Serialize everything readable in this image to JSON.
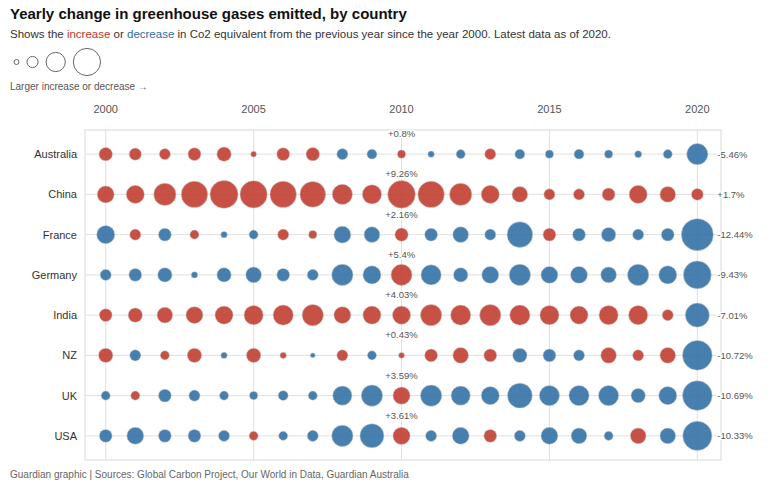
{
  "chart_data": {
    "type": "bubble",
    "title": "Yearly change in greenhouse gases emitted, by country",
    "subtitle": [
      {
        "text": "Shows the ",
        "color": "#333333"
      },
      {
        "text": "increase",
        "color": "#c0392b"
      },
      {
        "text": " or ",
        "color": "#333333"
      },
      {
        "text": "decrease",
        "color": "#2e6da4"
      },
      {
        "text": " in Co2 equivalent from the previous year since the year 2000. Latest data as of 2020.",
        "color": "#333333"
      }
    ],
    "footnote": "Guardian graphic | Sources: Global Carbon Project, Our World in Data, Guardian Australia",
    "x": [
      2000,
      2001,
      2002,
      2003,
      2004,
      2005,
      2006,
      2007,
      2008,
      2009,
      2010,
      2011,
      2012,
      2013,
      2014,
      2015,
      2016,
      2017,
      2018,
      2019,
      2020
    ],
    "xlim": [
      1999.3,
      2020.8
    ],
    "xticks": [
      2000,
      2005,
      2010,
      2015,
      2020
    ],
    "grid": true,
    "size_range": [
      0,
      12.44
    ],
    "size_legend": {
      "values": [
        0.3,
        1.5,
        4.5,
        9.0
      ],
      "label": "Larger increase or decrease →"
    },
    "series": [
      {
        "name": "Australia",
        "values": [
          2.2,
          1.8,
          1.5,
          2.0,
          2.5,
          0.4,
          2.0,
          2.2,
          -1.5,
          -1.2,
          0.8,
          -0.5,
          -1.0,
          1.5,
          -1.2,
          -0.8,
          -1.2,
          -0.8,
          -0.6,
          -1.0,
          -5.46
        ],
        "value_labels": [
          null,
          null,
          null,
          null,
          null,
          null,
          null,
          null,
          null,
          null,
          "+0.8%",
          null,
          null,
          null,
          null,
          null,
          null,
          null,
          null,
          null,
          "-5.46%"
        ],
        "colors": [
          "#c0392b",
          "#c0392b",
          "#c0392b",
          "#c0392b",
          "#c0392b",
          "#c0392b",
          "#c0392b",
          "#c0392b",
          "#2e6da4",
          "#2e6da4",
          "#c0392b",
          "#2e6da4",
          "#2e6da4",
          "#c0392b",
          "#2e6da4",
          "#2e6da4",
          "#2e6da4",
          "#2e6da4",
          "#2e6da4",
          "#2e6da4",
          "#2e6da4"
        ]
      },
      {
        "name": "China",
        "values": [
          3.5,
          4.0,
          6.0,
          8.5,
          9.5,
          9.0,
          8.5,
          8.0,
          5.0,
          4.5,
          9.26,
          8.5,
          6.0,
          4.0,
          3.0,
          1.5,
          1.5,
          2.0,
          4.0,
          3.0,
          1.7
        ],
        "value_labels": [
          null,
          null,
          null,
          null,
          null,
          null,
          null,
          null,
          null,
          null,
          "+9.26%",
          null,
          null,
          null,
          null,
          null,
          null,
          null,
          null,
          null,
          "+1.7%"
        ],
        "colors": [
          "#c0392b",
          "#c0392b",
          "#c0392b",
          "#c0392b",
          "#c0392b",
          "#c0392b",
          "#c0392b",
          "#c0392b",
          "#c0392b",
          "#c0392b",
          "#c0392b",
          "#c0392b",
          "#c0392b",
          "#c0392b",
          "#c0392b",
          "#c0392b",
          "#c0392b",
          "#c0392b",
          "#c0392b",
          "#c0392b",
          "#c0392b"
        ]
      },
      {
        "name": "France",
        "values": [
          -4.0,
          1.5,
          -2.0,
          1.0,
          -0.5,
          -1.0,
          1.5,
          0.8,
          -3.5,
          -3.0,
          2.16,
          -2.0,
          -3.0,
          -1.5,
          -8.0,
          2.0,
          -2.0,
          -2.5,
          -1.5,
          -2.0,
          -12.44
        ],
        "value_labels": [
          null,
          null,
          null,
          null,
          null,
          null,
          null,
          null,
          null,
          null,
          "+2.16%",
          null,
          null,
          null,
          null,
          null,
          null,
          null,
          null,
          null,
          "-12.44%"
        ],
        "colors": [
          "#2e6da4",
          "#c0392b",
          "#2e6da4",
          "#c0392b",
          "#2e6da4",
          "#2e6da4",
          "#c0392b",
          "#c0392b",
          "#2e6da4",
          "#2e6da4",
          "#c0392b",
          "#2e6da4",
          "#2e6da4",
          "#2e6da4",
          "#2e6da4",
          "#c0392b",
          "#2e6da4",
          "#2e6da4",
          "#2e6da4",
          "#2e6da4",
          "#2e6da4"
        ]
      },
      {
        "name": "Germany",
        "values": [
          -1.5,
          -2.0,
          -2.5,
          -0.5,
          -2.5,
          -3.0,
          -2.0,
          -1.5,
          -5.5,
          -4.0,
          5.4,
          -5.0,
          -2.5,
          -3.5,
          -5.5,
          -3.5,
          -3.5,
          -3.0,
          -5.5,
          -4.0,
          -9.43
        ],
        "value_labels": [
          null,
          null,
          null,
          null,
          null,
          null,
          null,
          null,
          null,
          null,
          "+5.4%",
          null,
          null,
          null,
          null,
          null,
          null,
          null,
          null,
          null,
          "-9.43%"
        ],
        "colors": [
          "#2e6da4",
          "#2e6da4",
          "#2e6da4",
          "#2e6da4",
          "#2e6da4",
          "#2e6da4",
          "#2e6da4",
          "#2e6da4",
          "#2e6da4",
          "#2e6da4",
          "#c0392b",
          "#2e6da4",
          "#2e6da4",
          "#2e6da4",
          "#2e6da4",
          "#2e6da4",
          "#2e6da4",
          "#2e6da4",
          "#2e6da4",
          "#2e6da4",
          "#2e6da4"
        ]
      },
      {
        "name": "India",
        "values": [
          2.0,
          2.5,
          3.0,
          3.5,
          4.0,
          4.5,
          5.0,
          5.5,
          3.5,
          4.0,
          4.03,
          5.5,
          5.0,
          5.5,
          5.0,
          4.5,
          4.0,
          4.5,
          4.5,
          1.5,
          -7.01
        ],
        "value_labels": [
          null,
          null,
          null,
          null,
          null,
          null,
          null,
          null,
          null,
          null,
          "+4.03%",
          null,
          null,
          null,
          null,
          null,
          null,
          null,
          null,
          null,
          "-7.01%"
        ],
        "colors": [
          "#c0392b",
          "#c0392b",
          "#c0392b",
          "#c0392b",
          "#c0392b",
          "#c0392b",
          "#c0392b",
          "#c0392b",
          "#c0392b",
          "#c0392b",
          "#c0392b",
          "#c0392b",
          "#c0392b",
          "#c0392b",
          "#c0392b",
          "#c0392b",
          "#c0392b",
          "#c0392b",
          "#c0392b",
          "#c0392b",
          "#2e6da4"
        ]
      },
      {
        "name": "NZ",
        "values": [
          2.5,
          -1.5,
          1.0,
          2.5,
          -0.5,
          2.5,
          0.5,
          -0.3,
          1.5,
          -1.0,
          0.43,
          2.0,
          3.0,
          2.0,
          -2.5,
          -2.0,
          -1.5,
          3.0,
          1.5,
          3.0,
          -10.72
        ],
        "value_labels": [
          null,
          null,
          null,
          null,
          null,
          null,
          null,
          null,
          null,
          null,
          "+0.43%",
          null,
          null,
          null,
          null,
          null,
          null,
          null,
          null,
          null,
          "-10.72%"
        ],
        "colors": [
          "#c0392b",
          "#2e6da4",
          "#c0392b",
          "#c0392b",
          "#2e6da4",
          "#c0392b",
          "#c0392b",
          "#2e6da4",
          "#c0392b",
          "#2e6da4",
          "#c0392b",
          "#c0392b",
          "#c0392b",
          "#c0392b",
          "#2e6da4",
          "#2e6da4",
          "#2e6da4",
          "#c0392b",
          "#c0392b",
          "#c0392b",
          "#2e6da4"
        ]
      },
      {
        "name": "UK",
        "values": [
          -1.0,
          1.0,
          -2.0,
          -1.5,
          -1.0,
          -0.8,
          -1.2,
          -1.0,
          -4.5,
          -5.5,
          3.59,
          -5.5,
          -4.5,
          -4.0,
          -7.5,
          -5.0,
          -5.0,
          -5.0,
          -2.5,
          -4.0,
          -10.69
        ],
        "value_labels": [
          null,
          null,
          null,
          null,
          null,
          null,
          null,
          null,
          null,
          null,
          "+3.59%",
          null,
          null,
          null,
          null,
          null,
          null,
          null,
          null,
          null,
          "-10.69%"
        ],
        "colors": [
          "#2e6da4",
          "#c0392b",
          "#2e6da4",
          "#2e6da4",
          "#2e6da4",
          "#2e6da4",
          "#2e6da4",
          "#2e6da4",
          "#2e6da4",
          "#2e6da4",
          "#c0392b",
          "#2e6da4",
          "#2e6da4",
          "#2e6da4",
          "#2e6da4",
          "#2e6da4",
          "#2e6da4",
          "#2e6da4",
          "#2e6da4",
          "#2e6da4",
          "#2e6da4"
        ]
      },
      {
        "name": "USA",
        "values": [
          -2.0,
          -3.5,
          -2.0,
          -2.0,
          -1.5,
          1.0,
          -1.0,
          -1.5,
          -5.5,
          -7.0,
          3.61,
          -1.5,
          -3.5,
          2.0,
          -1.5,
          -3.5,
          -3.0,
          -1.0,
          3.0,
          -3.0,
          -10.33
        ],
        "value_labels": [
          null,
          null,
          null,
          null,
          null,
          null,
          null,
          null,
          null,
          null,
          "+3.61%",
          null,
          null,
          null,
          null,
          null,
          null,
          null,
          null,
          null,
          "-10.33%"
        ],
        "colors": [
          "#2e6da4",
          "#2e6da4",
          "#2e6da4",
          "#2e6da4",
          "#2e6da4",
          "#c0392b",
          "#2e6da4",
          "#2e6da4",
          "#2e6da4",
          "#2e6da4",
          "#c0392b",
          "#2e6da4",
          "#2e6da4",
          "#c0392b",
          "#2e6da4",
          "#2e6da4",
          "#2e6da4",
          "#2e6da4",
          "#c0392b",
          "#2e6da4",
          "#2e6da4"
        ]
      }
    ]
  }
}
